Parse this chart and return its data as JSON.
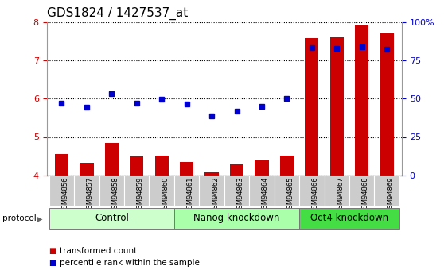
{
  "title": "GDS1824 / 1427537_at",
  "samples": [
    "GSM94856",
    "GSM94857",
    "GSM94858",
    "GSM94859",
    "GSM94860",
    "GSM94861",
    "GSM94862",
    "GSM94863",
    "GSM94864",
    "GSM94865",
    "GSM94866",
    "GSM94867",
    "GSM94868",
    "GSM94869"
  ],
  "bar_values": [
    4.55,
    4.32,
    4.85,
    4.5,
    4.52,
    4.35,
    4.08,
    4.28,
    4.38,
    4.52,
    7.58,
    7.6,
    7.92,
    7.7
  ],
  "dot_values": [
    5.87,
    5.78,
    6.12,
    5.88,
    5.98,
    5.86,
    5.55,
    5.68,
    5.8,
    6.0,
    7.32,
    7.3,
    7.35,
    7.28
  ],
  "ylim_left": [
    4.0,
    8.0
  ],
  "ylim_right": [
    0,
    100
  ],
  "yticks_left": [
    4,
    5,
    6,
    7,
    8
  ],
  "yticks_right": [
    0,
    25,
    50,
    75,
    100
  ],
  "yticklabels_right": [
    "0",
    "25",
    "50",
    "75",
    "100%"
  ],
  "bar_color": "#cc0000",
  "dot_color": "#0000cc",
  "groups": [
    {
      "label": "Control",
      "start": 0,
      "end": 5,
      "color": "#ccffcc"
    },
    {
      "label": "Nanog knockdown",
      "start": 5,
      "end": 10,
      "color": "#aaffaa"
    },
    {
      "label": "Oct4 knockdown",
      "start": 10,
      "end": 14,
      "color": "#44dd44"
    }
  ],
  "sample_box_color": "#cccccc",
  "legend_items": [
    {
      "label": "transformed count",
      "color": "#cc0000"
    },
    {
      "label": "percentile rank within the sample",
      "color": "#0000cc"
    }
  ],
  "protocol_label": "protocol",
  "background_color": "#ffffff",
  "title_fontsize": 11,
  "tick_fontsize": 8,
  "group_fontsize": 8.5,
  "legend_fontsize": 7.5
}
